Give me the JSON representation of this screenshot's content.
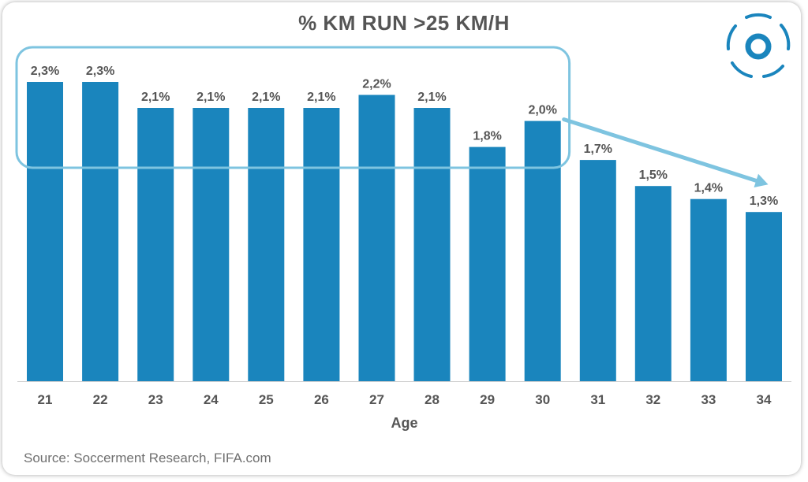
{
  "title": "% KM RUN >25 KM/H",
  "source": "Source: Soccerment Research, FIFA.com",
  "logo_icon": "soccerment-logo-icon",
  "colors": {
    "bar": "#1a85bd",
    "highlight": "#7ec4e0",
    "text": "#555555",
    "axis": "#cfcfcf"
  },
  "chart_data": {
    "type": "bar",
    "title": "% KM RUN >25 KM/H",
    "xlabel": "Age",
    "ylabel": "",
    "categories": [
      "21",
      "22",
      "23",
      "24",
      "25",
      "26",
      "27",
      "28",
      "29",
      "30",
      "31",
      "32",
      "33",
      "34"
    ],
    "values": [
      2.3,
      2.3,
      2.1,
      2.1,
      2.1,
      2.1,
      2.2,
      2.1,
      1.8,
      2.0,
      1.7,
      1.5,
      1.4,
      1.3
    ],
    "data_labels": [
      "2,3%",
      "2,3%",
      "2,1%",
      "2,1%",
      "2,1%",
      "2,1%",
      "2,2%",
      "2,1%",
      "1,8%",
      "2,0%",
      "1,7%",
      "1,5%",
      "1,4%",
      "1,3%"
    ],
    "ylim": [
      0,
      2.3
    ],
    "grid": false,
    "highlight_group": [
      "21",
      "30"
    ],
    "trend_arrow": [
      "30",
      "34"
    ]
  }
}
